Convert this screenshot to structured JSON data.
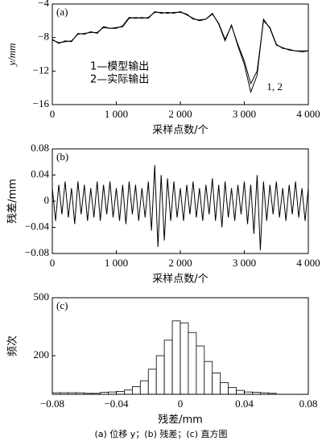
{
  "chart_data": [
    {
      "type": "line",
      "panel_label": "(a)",
      "xlabel": "采样点数/个",
      "ylabel": "y/mm",
      "annotation": "1, 2",
      "xlim": [
        0,
        4000
      ],
      "ylim": [
        -16,
        -4
      ],
      "xticks": [
        0,
        {
          "value": 1000,
          "label": "1 000"
        },
        {
          "value": 2000,
          "label": "2 000"
        },
        {
          "value": 3000,
          "label": "3 000"
        },
        {
          "value": 4000,
          "label": "4 000"
        }
      ],
      "yticks": [
        {
          "value": -4,
          "label": "−4"
        },
        {
          "value": -8,
          "label": "−8"
        },
        {
          "value": -12,
          "label": "−12"
        },
        {
          "value": -16,
          "label": "−16"
        }
      ],
      "x": [
        0,
        100,
        200,
        300,
        400,
        500,
        600,
        700,
        800,
        900,
        1000,
        1100,
        1200,
        1300,
        1400,
        1500,
        1600,
        1700,
        1800,
        1900,
        2000,
        2100,
        2200,
        2300,
        2400,
        2500,
        2600,
        2700,
        2800,
        2900,
        3000,
        3100,
        3200,
        3300,
        3400,
        3500,
        3600,
        3700,
        3800,
        3900,
        4000
      ],
      "series": [
        {
          "name": "1—模型输出",
          "color": "#000000",
          "values": [
            -8.3,
            -8.6,
            -8.5,
            -8.4,
            -7.6,
            -7.5,
            -7.4,
            -7.4,
            -6.8,
            -6.9,
            -6.8,
            -6.7,
            -5.7,
            -5.6,
            -5.7,
            -5.6,
            -5.0,
            -5.0,
            -5.1,
            -5.0,
            -5.0,
            -5.2,
            -5.8,
            -5.9,
            -5.8,
            -5.2,
            -6.3,
            -8.2,
            -6.6,
            -8.8,
            -10.8,
            -13.5,
            -12.0,
            -6.0,
            -6.8,
            -8.8,
            -9.3,
            -9.4,
            -9.6,
            -9.6,
            -9.6
          ]
        },
        {
          "name": "2—实际输出",
          "color": "#000000",
          "values": [
            -8.2,
            -8.7,
            -8.4,
            -8.5,
            -7.5,
            -7.6,
            -7.3,
            -7.5,
            -6.7,
            -6.9,
            -6.9,
            -6.6,
            -5.6,
            -5.7,
            -5.6,
            -5.7,
            -4.9,
            -5.1,
            -5.0,
            -5.1,
            -4.9,
            -5.3,
            -5.7,
            -6.0,
            -5.8,
            -5.1,
            -6.4,
            -8.4,
            -6.5,
            -9.0,
            -11.2,
            -14.5,
            -12.5,
            -5.8,
            -6.9,
            -8.9,
            -9.2,
            -9.5,
            -9.6,
            -9.7,
            -9.6
          ]
        }
      ]
    },
    {
      "type": "line",
      "panel_label": "(b)",
      "xlabel": "采样点数/个",
      "ylabel": "残差/mm",
      "xlim": [
        0,
        4000
      ],
      "ylim": [
        -0.08,
        0.08
      ],
      "xticks": [
        0,
        {
          "value": 1000,
          "label": "1 000"
        },
        {
          "value": 2000,
          "label": "2 000"
        },
        {
          "value": 3000,
          "label": "3 000"
        },
        {
          "value": 4000,
          "label": "4 000"
        }
      ],
      "yticks": [
        {
          "value": -0.08,
          "label": "−0.08"
        },
        {
          "value": -0.04,
          "label": "−0.04"
        },
        0,
        0.04,
        0.08
      ],
      "x": [
        0,
        50,
        100,
        150,
        200,
        250,
        300,
        350,
        400,
        450,
        500,
        550,
        600,
        650,
        700,
        750,
        800,
        850,
        900,
        950,
        1000,
        1050,
        1100,
        1150,
        1200,
        1250,
        1300,
        1350,
        1400,
        1450,
        1500,
        1550,
        1600,
        1650,
        1700,
        1750,
        1800,
        1850,
        1900,
        1950,
        2000,
        2050,
        2100,
        2150,
        2200,
        2250,
        2300,
        2350,
        2400,
        2450,
        2500,
        2550,
        2600,
        2650,
        2700,
        2750,
        2800,
        2850,
        2900,
        2950,
        3000,
        3050,
        3100,
        3150,
        3200,
        3250,
        3300,
        3350,
        3400,
        3450,
        3500,
        3550,
        3600,
        3650,
        3700,
        3750,
        3800,
        3850,
        3900,
        3950,
        4000
      ],
      "series": [
        {
          "name": "残差",
          "color": "#000000",
          "values": [
            0.02,
            -0.03,
            0.025,
            -0.02,
            0.03,
            -0.025,
            0.02,
            -0.035,
            0.03,
            -0.02,
            0.025,
            -0.03,
            0.02,
            -0.025,
            0.03,
            -0.03,
            0.025,
            -0.02,
            0.03,
            -0.025,
            0.02,
            -0.03,
            0.025,
            -0.035,
            0.03,
            -0.02,
            0.025,
            -0.03,
            0.02,
            -0.025,
            0.03,
            -0.045,
            0.055,
            -0.07,
            0.04,
            -0.06,
            0.035,
            -0.03,
            0.03,
            -0.025,
            0.02,
            -0.03,
            0.025,
            -0.02,
            0.03,
            -0.025,
            0.02,
            -0.03,
            0.025,
            -0.02,
            0.035,
            -0.03,
            0.025,
            -0.04,
            0.03,
            -0.025,
            0.02,
            -0.03,
            0.025,
            -0.02,
            0.03,
            -0.035,
            0.025,
            -0.05,
            0.04,
            -0.075,
            0.03,
            -0.03,
            0.025,
            -0.02,
            0.03,
            -0.025,
            0.02,
            -0.03,
            0.025,
            -0.02,
            0.03,
            -0.025,
            0.02,
            -0.03,
            0.02
          ]
        }
      ]
    },
    {
      "type": "histogram",
      "panel_label": "(c)",
      "xlabel": "残差/mm",
      "ylabel": "频次",
      "color": "#ffffff",
      "xlim": [
        -0.08,
        0.08
      ],
      "ylim": [
        0,
        500
      ],
      "xticks": [
        {
          "value": -0.08,
          "label": "−0.08"
        },
        {
          "value": -0.04,
          "label": "−0.04"
        },
        0,
        0.04,
        0.08
      ],
      "yticks": [
        200,
        500
      ],
      "bins": [
        -0.08,
        -0.075,
        -0.07,
        -0.065,
        -0.06,
        -0.055,
        -0.05,
        -0.045,
        -0.04,
        -0.035,
        -0.03,
        -0.025,
        -0.02,
        -0.015,
        -0.01,
        -0.005,
        0,
        0.005,
        0.01,
        0.015,
        0.02,
        0.025,
        0.03,
        0.035,
        0.04,
        0.045,
        0.05,
        0.055,
        0.06
      ],
      "counts": [
        8,
        8,
        8,
        8,
        5,
        5,
        10,
        12,
        15,
        22,
        40,
        70,
        130,
        200,
        280,
        380,
        370,
        320,
        250,
        170,
        110,
        60,
        35,
        20,
        12,
        10,
        8,
        5
      ]
    }
  ],
  "caption": "(a) 位移 y；(b) 残差；(c) 直方图"
}
